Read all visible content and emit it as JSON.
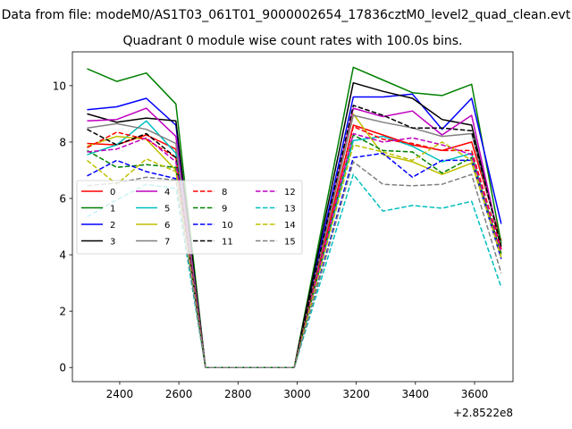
{
  "chart_data": {
    "type": "line",
    "suptitle": "Data from file: modeM0/AS1T03_061T01_9000002654_17836cztM0_level2_quad_clean.evt",
    "title": "Quadrant 0 module wise count rates with 100.0s bins.",
    "xlabel": "",
    "ylabel": "",
    "x_offset_label": "+2.8522e8",
    "xlim": [
      2240,
      3730
    ],
    "ylim": [
      -0.5,
      11.2
    ],
    "xticks": [
      2400,
      2600,
      2800,
      3000,
      3200,
      3400,
      3600
    ],
    "yticks": [
      0,
      2,
      4,
      6,
      8,
      10
    ],
    "x": [
      2290,
      2390,
      2490,
      2590,
      2690,
      2790,
      2890,
      2990,
      3190,
      3290,
      3390,
      3490,
      3590,
      3690
    ],
    "series": [
      {
        "name": "0",
        "color": "#ff0000",
        "dash": "solid",
        "values": [
          7.95,
          7.9,
          8.25,
          7.75,
          0,
          0,
          0,
          0,
          8.6,
          8.25,
          7.9,
          7.7,
          8.0,
          4.5
        ]
      },
      {
        "name": "1",
        "color": "#008000",
        "dash": "solid",
        "values": [
          10.6,
          10.15,
          10.45,
          9.35,
          0,
          0,
          0,
          0,
          10.65,
          10.2,
          9.75,
          9.65,
          10.05,
          4.4
        ]
      },
      {
        "name": "2",
        "color": "#0000ff",
        "dash": "solid",
        "values": [
          9.15,
          9.25,
          9.55,
          8.6,
          0,
          0,
          0,
          0,
          9.6,
          9.6,
          9.7,
          8.45,
          9.55,
          5.1
        ]
      },
      {
        "name": "3",
        "color": "#000000",
        "dash": "solid",
        "values": [
          9.0,
          8.7,
          8.85,
          8.75,
          0,
          0,
          0,
          0,
          10.1,
          9.8,
          9.55,
          8.8,
          8.6,
          4.2
        ]
      },
      {
        "name": "4",
        "color": "#bf00bf",
        "dash": "solid",
        "values": [
          8.75,
          8.8,
          9.2,
          8.2,
          0,
          0,
          0,
          0,
          9.2,
          8.9,
          9.1,
          8.25,
          8.95,
          4.2
        ]
      },
      {
        "name": "5",
        "color": "#00bfbf",
        "dash": "solid",
        "values": [
          7.55,
          7.9,
          8.75,
          7.6,
          0,
          0,
          0,
          0,
          8.05,
          8.2,
          7.85,
          7.3,
          7.6,
          3.9
        ]
      },
      {
        "name": "6",
        "color": "#bfbf00",
        "dash": "solid",
        "values": [
          7.85,
          8.2,
          8.1,
          7.0,
          0,
          0,
          0,
          0,
          9.0,
          7.55,
          7.3,
          6.85,
          7.25,
          4.0
        ]
      },
      {
        "name": "7",
        "color": "#808080",
        "dash": "solid",
        "values": [
          8.5,
          8.65,
          8.45,
          7.95,
          0,
          0,
          0,
          0,
          8.95,
          8.7,
          8.5,
          8.2,
          8.3,
          4.3
        ]
      },
      {
        "name": "8",
        "color": "#ff0000",
        "dash": "dashed",
        "values": [
          7.8,
          8.35,
          8.1,
          7.45,
          0,
          0,
          0,
          0,
          8.55,
          8.1,
          7.95,
          7.7,
          7.7,
          4.2
        ]
      },
      {
        "name": "9",
        "color": "#008000",
        "dash": "dashed",
        "values": [
          7.7,
          7.1,
          7.2,
          7.1,
          0,
          0,
          0,
          0,
          8.25,
          7.7,
          7.65,
          6.9,
          7.45,
          4.05
        ]
      },
      {
        "name": "10",
        "color": "#0000ff",
        "dash": "dashed",
        "values": [
          6.8,
          7.35,
          6.95,
          6.7,
          0,
          0,
          0,
          0,
          7.45,
          7.6,
          6.75,
          7.35,
          7.35,
          3.85
        ]
      },
      {
        "name": "11",
        "color": "#000000",
        "dash": "dashed",
        "values": [
          8.45,
          7.9,
          8.3,
          7.45,
          0,
          0,
          0,
          0,
          9.3,
          8.95,
          8.5,
          8.5,
          8.4,
          4.3
        ]
      },
      {
        "name": "12",
        "color": "#bf00bf",
        "dash": "dashed",
        "values": [
          7.65,
          7.75,
          8.15,
          7.3,
          0,
          0,
          0,
          0,
          8.3,
          8.0,
          8.15,
          7.9,
          7.55,
          4.1
        ]
      },
      {
        "name": "13",
        "color": "#00bfbf",
        "dash": "dashed",
        "values": [
          5.35,
          5.95,
          6.5,
          6.35,
          0,
          0,
          0,
          0,
          6.85,
          5.55,
          5.75,
          5.65,
          5.9,
          2.85
        ]
      },
      {
        "name": "14",
        "color": "#bfbf00",
        "dash": "dashed",
        "values": [
          7.35,
          6.5,
          7.4,
          6.95,
          0,
          0,
          0,
          0,
          7.9,
          7.65,
          7.35,
          8.0,
          7.35,
          3.9
        ]
      },
      {
        "name": "15",
        "color": "#808080",
        "dash": "dashed",
        "values": [
          6.45,
          6.55,
          6.75,
          6.65,
          0,
          0,
          0,
          0,
          7.3,
          6.5,
          6.45,
          6.5,
          6.85,
          3.35
        ]
      }
    ],
    "legend": {
      "placement": "center-left",
      "columns": 4
    },
    "grid": false
  }
}
